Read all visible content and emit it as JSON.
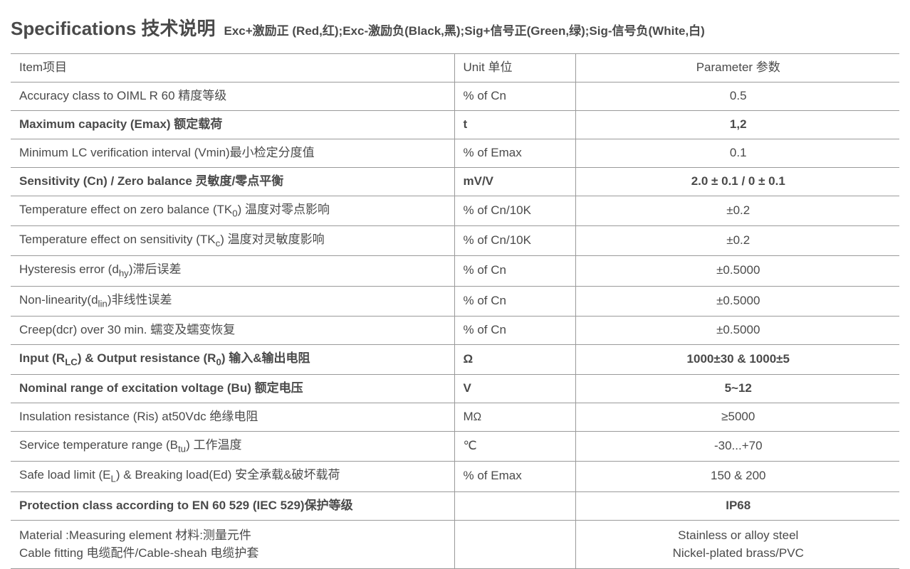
{
  "header": {
    "title": "Specifications 技术说明",
    "subtitle": "Exc+激励正 (Red,红);Exc-激励负(Black,黑);Sig+信号正(Green,绿);Sig-信号负(White,白)"
  },
  "columns": {
    "item": "Item项目",
    "unit": "Unit 单位",
    "param": "Parameter 参数"
  },
  "rows": [
    {
      "item": "Accuracy class to OIML R 60 精度等级",
      "unit": "% of Cn",
      "param": "0.5",
      "bold": false
    },
    {
      "item": "Maximum  capacity (Emax) 额定载荷",
      "unit": "t",
      "param": "1,2",
      "bold": true
    },
    {
      "item": "Minimum LC verification interval (Vmin)最小检定分度值",
      "unit": "% of Emax",
      "param": "0.1",
      "bold": false
    },
    {
      "item": "Sensitivity (Cn) / Zero balance 灵敏度/零点平衡",
      "unit": "mV/V",
      "param": "2.0 ± 0.1 / 0 ± 0.1",
      "bold": true
    },
    {
      "item_html": "Temperature effect on zero balance  (TK<span class='sub'>0</span>)  温度对零点影响",
      "unit": "% of Cn/10K",
      "param": "±0.2",
      "bold": false
    },
    {
      "item_html": "Temperature effect on sensitivity (TK<span class='sub'>c</span>)  温度对灵敏度影响",
      "unit": "% of Cn/10K",
      "param": "±0.2",
      "bold": false
    },
    {
      "item_html": "Hysteresis error (d<span class='sub'>hy</span>)滞后误差",
      "unit": "% of Cn",
      "param": "±0.5000",
      "bold": false
    },
    {
      "item_html": "Non-linearity(d<span class='sub'>lin</span>)非线性误差",
      "unit": "% of Cn",
      "param": "±0.5000",
      "bold": false
    },
    {
      "item": "Creep(dcr) over 30 min. 蠕变及蠕变恢复",
      "unit": "% of Cn",
      "param": "±0.5000",
      "bold": false
    },
    {
      "item_html": "Input (R<span class='sub'>LC</span>) & Output resistance (R<span class='sub'>0</span>) 输入&输出电阻",
      "unit": "Ω",
      "param": "1000±30 & 1000±5",
      "bold": true
    },
    {
      "item": "Nominal range of excitation voltage (Bu) 额定电压",
      "unit": "V",
      "param": "5~12",
      "bold": true
    },
    {
      "item_html": "Insulation resistance (Ris) at50Vdc  绝缘电阻",
      "unit_html": "M<span style='font-size:0.9em'>Ω</span>",
      "param": "≥5000",
      "bold": false
    },
    {
      "item_html": "Service temperature range (B<span class='sub'>tu</span>) 工作温度",
      "unit": "℃",
      "param": "-30...+70",
      "bold": false
    },
    {
      "item_html": "Safe load limit (E<span class='sub'>L</span>) & Breaking load(Ed) 安全承载&破坏载荷",
      "unit": "% of Emax",
      "param": "150 & 200",
      "bold": false
    },
    {
      "item": "Protection class according to EN 60 529  (IEC 529)保护等级",
      "unit": "",
      "param": "IP68",
      "bold": true
    },
    {
      "item_html": "Material :Measuring element 材料:测量元件<br>Cable fitting 电缆配件/Cable-sheah 电缆护套",
      "unit": "",
      "param_html": "Stainless or alloy steel<br>Nickel-plated brass/PVC",
      "bold": false,
      "multi": true
    }
  ],
  "style": {
    "text_color": "#4a4a4a",
    "border_color": "#9a9a9a",
    "background": "#ffffff",
    "title_fontsize": 26,
    "subtitle_fontsize": 17,
    "body_fontsize": 17
  }
}
